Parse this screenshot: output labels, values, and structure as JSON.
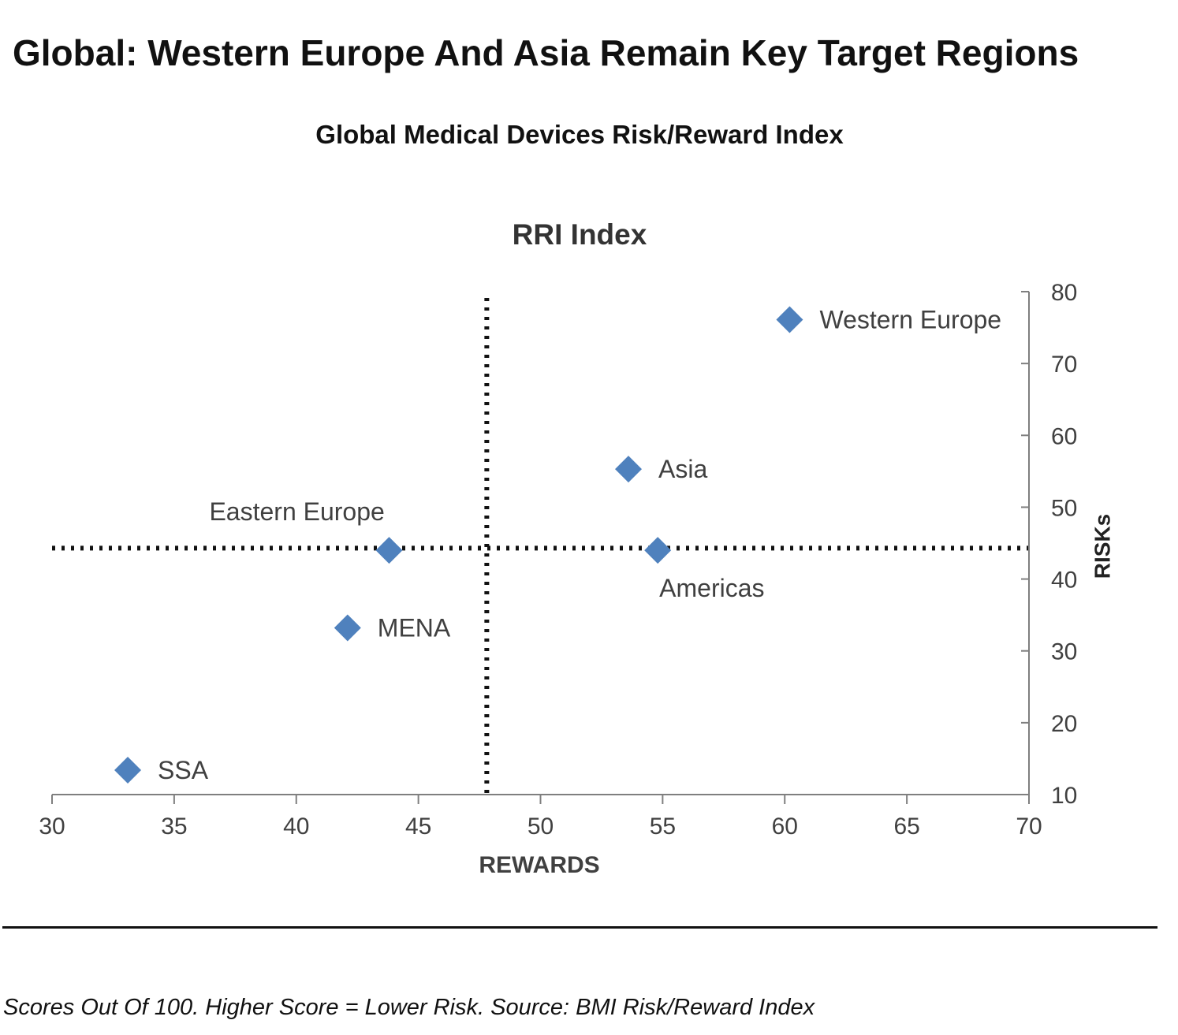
{
  "page": {
    "title": "Global: Western Europe And Asia Remain Key Target Regions",
    "subtitle": "Global Medical Devices Risk/Reward Index",
    "footnote": "Scores Out Of 100. Higher Score = Lower Risk. Source: BMI Risk/Reward Index"
  },
  "colors": {
    "marker": "#4f81bd",
    "axis": "#7f7f7f",
    "text": "#111111",
    "label": "#404040"
  },
  "chart_data": {
    "type": "scatter",
    "title": "RRI Index",
    "xlabel": "REWARDS",
    "ylabel": "RISKs",
    "xlim": [
      30,
      70
    ],
    "ylim": [
      10,
      80
    ],
    "xticks": [
      30,
      35,
      40,
      45,
      50,
      55,
      60,
      65,
      70
    ],
    "yticks": [
      10,
      20,
      30,
      40,
      50,
      60,
      70,
      80
    ],
    "y_axis_side": "right",
    "reference_lines": {
      "x": 47.8,
      "y": 44.3
    },
    "points": [
      {
        "label": "Western Europe",
        "x": 60.2,
        "y": 76.1,
        "label_position": "right"
      },
      {
        "label": "Asia",
        "x": 53.6,
        "y": 55.3,
        "label_position": "right"
      },
      {
        "label": "Eastern Europe",
        "x": 43.8,
        "y": 44.0,
        "label_position": "top-left"
      },
      {
        "label": "Americas",
        "x": 54.8,
        "y": 44.0,
        "label_position": "bottom"
      },
      {
        "label": "MENA",
        "x": 42.1,
        "y": 33.2,
        "label_position": "right"
      },
      {
        "label": "SSA",
        "x": 33.1,
        "y": 13.4,
        "label_position": "right"
      }
    ]
  }
}
